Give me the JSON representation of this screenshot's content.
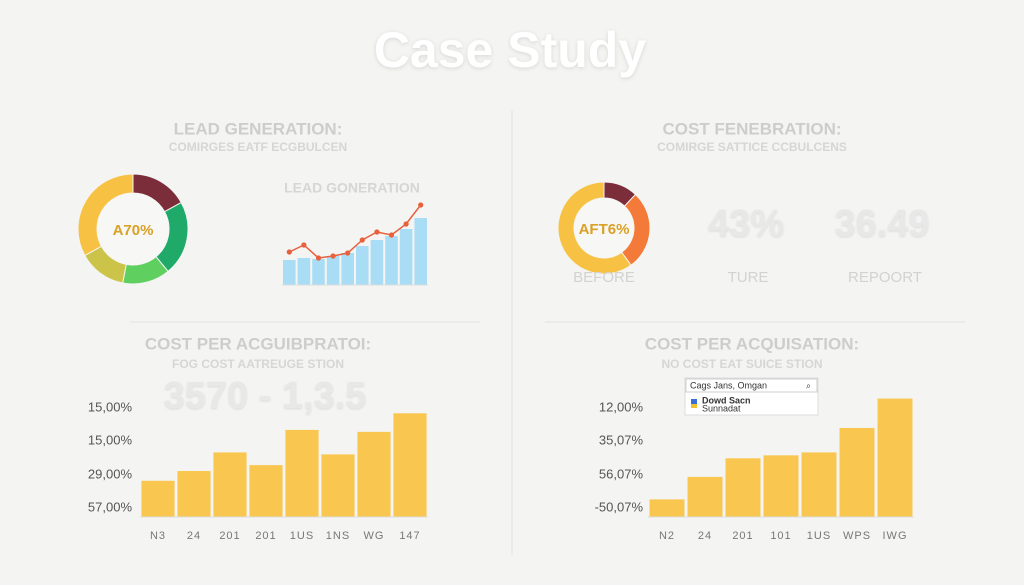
{
  "title": "Case Study",
  "stats": [
    {
      "value": "43%",
      "label": "TURE"
    },
    {
      "value": "36.49",
      "label": "REPOORT"
    }
  ],
  "search_box": {
    "query": "Cags Jans, Omgan",
    "result": "Dowd Sacn",
    "result_subtitle": "Sunnadat"
  },
  "chart_data": [
    {
      "type": "donut",
      "title": "LEAD GENERATION:",
      "subtitle": "COMIRGES EATF ECGBULCEN",
      "center_label": "A70%",
      "values": [
        17,
        22,
        14,
        14,
        33
      ],
      "colors": [
        "#7b2d3a",
        "#1faa6a",
        "#5fd060",
        "#cbc449",
        "#f7c244"
      ]
    },
    {
      "type": "bar",
      "title": "LEAD GONERATION",
      "categories": [
        null,
        null,
        null,
        null,
        null,
        null,
        null,
        null,
        null,
        null
      ],
      "ylim": [
        0,
        90
      ],
      "series": [
        {
          "type": "bar",
          "color": "#a9dcf5",
          "values": [
            25,
            27,
            26,
            29,
            32,
            39,
            45,
            49,
            56,
            67
          ]
        },
        {
          "type": "line",
          "color": "#e8603c",
          "values": [
            33,
            40,
            27,
            29,
            32,
            45,
            53,
            50,
            61,
            80
          ]
        }
      ]
    },
    {
      "type": "donut",
      "title": "COST FENEBRATION:",
      "subtitle": "COMIRGE SATTICE CCBULCENS",
      "center_label": "AFT6%",
      "label": "BEFORE",
      "values": [
        12,
        28,
        60
      ],
      "colors": [
        "#7b2d3a",
        "#f47a3a",
        "#f7c244"
      ]
    },
    {
      "type": "bar",
      "title": "COST PER ACGUIBPRATOI:",
      "subtitle": "FOG COST AATREUGE STION",
      "headline": "3570 - 1,3.5",
      "ytick_labels": [
        "15,00%",
        "15,00%",
        "29,00%",
        "57,00%"
      ],
      "categories": [
        "N3",
        "24",
        "201",
        "201",
        "1US",
        "1NS",
        "WG",
        "147"
      ],
      "ylim": [
        0,
        140
      ],
      "color": "#f9c74f",
      "values": [
        37,
        47,
        66,
        53,
        89,
        64,
        87,
        106
      ]
    },
    {
      "type": "bar",
      "title": "COST PER ACQUISATION:",
      "subtitle": "NO COST EAT SUICE STION",
      "ytick_labels": [
        "12,00%",
        "35,07%",
        "56,07%",
        "-50,07%"
      ],
      "categories": [
        "N2",
        "24",
        "201",
        "101",
        "1US",
        "WPS",
        "IWG"
      ],
      "ylim": [
        0,
        140
      ],
      "color": "#f9c74f",
      "values": [
        18,
        41,
        60,
        63,
        66,
        91,
        121
      ]
    }
  ]
}
